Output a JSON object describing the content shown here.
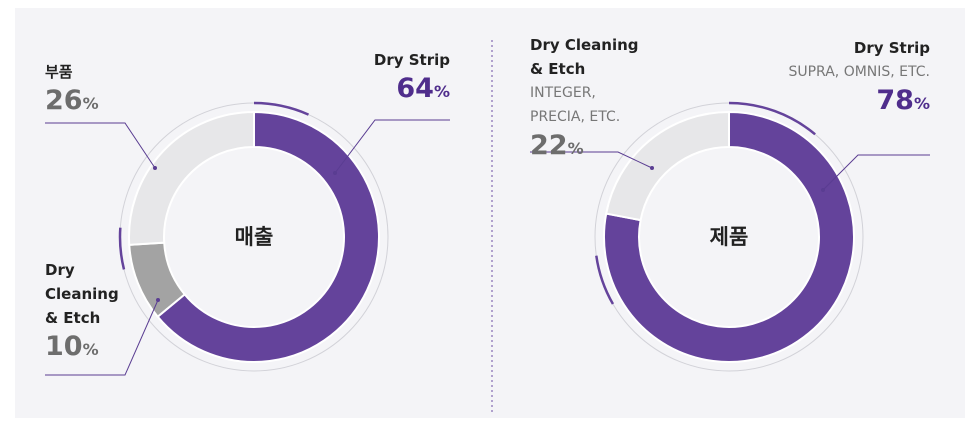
{
  "chart_data": [
    {
      "type": "pie",
      "center_label": "매출",
      "unit": "%",
      "categories": [
        "Dry Strip",
        "Dry Cleaning & Etch",
        "부품"
      ],
      "values": [
        64,
        10,
        26
      ],
      "colors": [
        "#64439b",
        "#a3a3a3",
        "#e7e7e9"
      ]
    },
    {
      "type": "pie",
      "center_label": "제품",
      "unit": "%",
      "categories": [
        "Dry Strip",
        "Dry Cleaning & Etch"
      ],
      "descriptions": [
        "SUPRA, OMNIS, ETC.",
        "INTEGER, PRECIA, ETC."
      ],
      "values": [
        78,
        22
      ],
      "colors": [
        "#64439b",
        "#e7e7e9"
      ]
    }
  ]
}
